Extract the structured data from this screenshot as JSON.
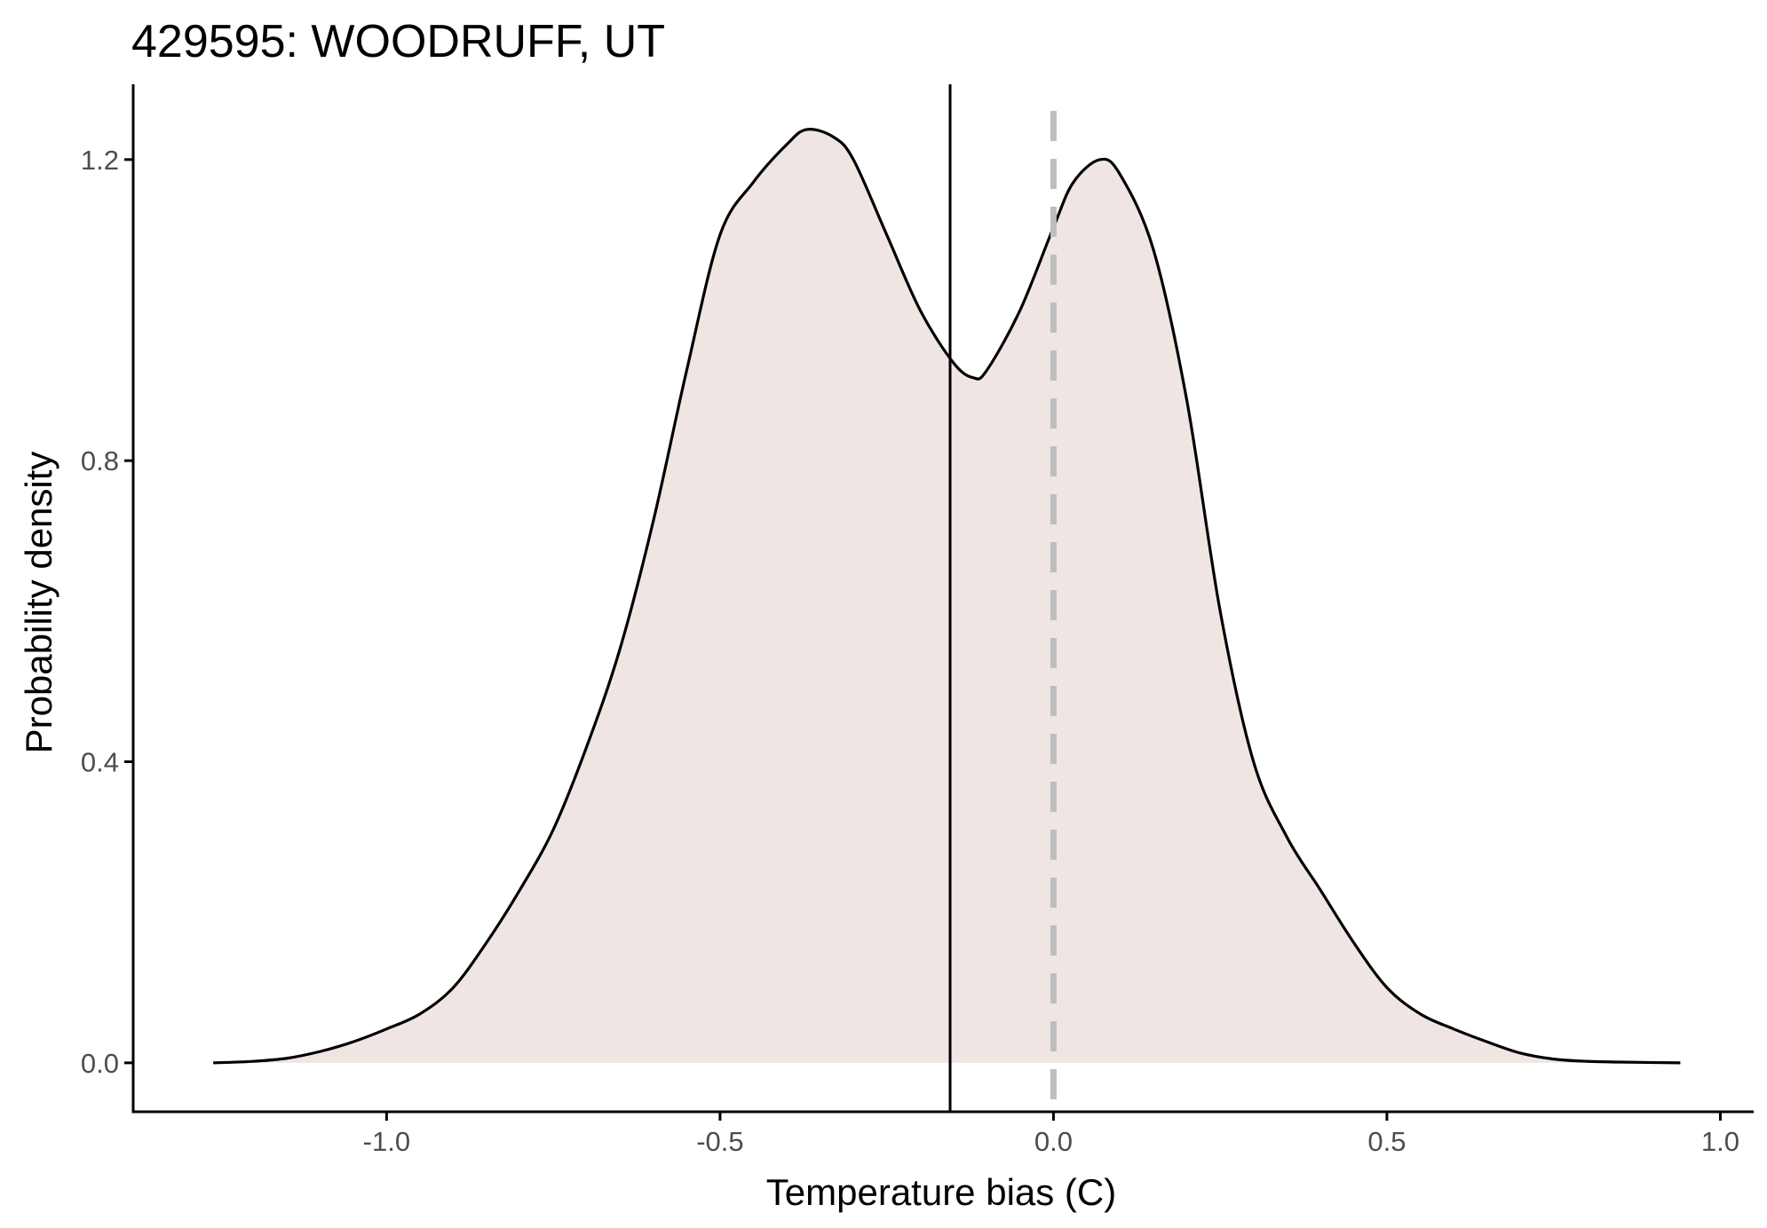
{
  "chart_data": {
    "type": "area",
    "title": "429595: WOODRUFF, UT",
    "xlabel": "Temperature bias (C)",
    "ylabel": "Probability density",
    "xlim": [
      -1.38,
      1.05
    ],
    "ylim": [
      -0.065,
      1.3
    ],
    "x_ticks": [
      -1.0,
      -0.5,
      0.0,
      0.5,
      1.0
    ],
    "x_tick_labels": [
      "-1.0",
      "-0.5",
      "0.0",
      "0.5",
      "1.0"
    ],
    "y_ticks": [
      0.0,
      0.4,
      0.8,
      1.2
    ],
    "y_tick_labels": [
      "0.0",
      "0.4",
      "0.8",
      "1.2"
    ],
    "grid": false,
    "legend": "none",
    "series": [
      {
        "x": [
          -1.26,
          -1.2,
          -1.15,
          -1.1,
          -1.05,
          -1.0,
          -0.95,
          -0.9,
          -0.85,
          -0.8,
          -0.75,
          -0.7,
          -0.65,
          -0.6,
          -0.55,
          -0.5,
          -0.45,
          -0.4,
          -0.37,
          -0.33,
          -0.3,
          -0.25,
          -0.2,
          -0.15,
          -0.12,
          -0.1,
          -0.05,
          0.0,
          0.03,
          0.07,
          0.1,
          0.15,
          0.2,
          0.25,
          0.3,
          0.35,
          0.4,
          0.45,
          0.5,
          0.55,
          0.6,
          0.65,
          0.7,
          0.75,
          0.8,
          0.85,
          0.94
        ],
        "y": [
          0.0,
          0.002,
          0.006,
          0.015,
          0.028,
          0.045,
          0.065,
          0.1,
          0.16,
          0.23,
          0.31,
          0.42,
          0.55,
          0.72,
          0.92,
          1.1,
          1.17,
          1.22,
          1.24,
          1.23,
          1.2,
          1.1,
          1.0,
          0.93,
          0.91,
          0.92,
          1.0,
          1.11,
          1.17,
          1.2,
          1.18,
          1.08,
          0.88,
          0.6,
          0.4,
          0.3,
          0.23,
          0.16,
          0.1,
          0.065,
          0.045,
          0.028,
          0.013,
          0.005,
          0.002,
          0.001,
          0.0
        ]
      }
    ],
    "vlines": [
      {
        "x": -0.155,
        "style": "solid",
        "color": "#000000"
      },
      {
        "x": 0.0,
        "style": "dashed",
        "color": "#bebebe"
      }
    ],
    "colors": {
      "fill": "#efe6e3",
      "line": "#000000",
      "axis": "#000000",
      "tick_label": "#4d4d4d"
    }
  }
}
